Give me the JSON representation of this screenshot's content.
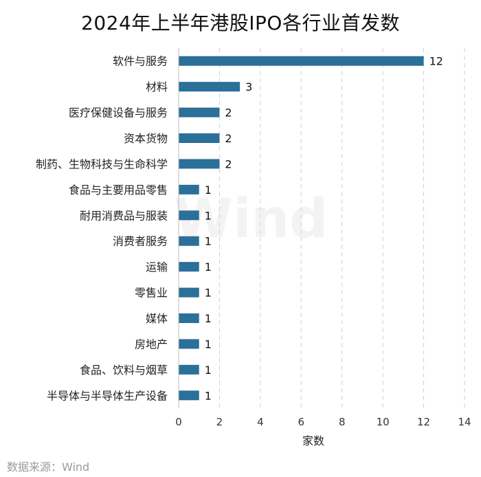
{
  "chart_data": {
    "type": "bar",
    "orientation": "horizontal",
    "title": "2024年上半年港股IPO各行业首发数",
    "categories": [
      "软件与服务",
      "材料",
      "医疗保健设备与服务",
      "资本货物",
      "制药、生物科技与生命科学",
      "食品与主要用品零售",
      "耐用消费品与服装",
      "消费者服务",
      "运输",
      "零售业",
      "媒体",
      "房地产",
      "食品、饮料与烟草",
      "半导体与半导体生产设备"
    ],
    "values": [
      12,
      3,
      2,
      2,
      2,
      1,
      1,
      1,
      1,
      1,
      1,
      1,
      1,
      1
    ],
    "xlabel": "家数",
    "ylabel": "",
    "xlim": [
      0,
      14
    ],
    "xticks": [
      0,
      2,
      4,
      6,
      8,
      10,
      12,
      14
    ],
    "grid": "vertical dashed",
    "data_labels": true,
    "bar_color": "#2a7099"
  },
  "watermark": "Wind",
  "source": "数据来源：Wind"
}
